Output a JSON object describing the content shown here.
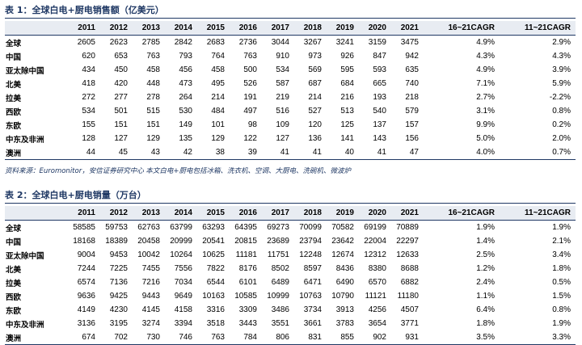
{
  "table1": {
    "caption": "表 1：全球白电+厨电销售额（亿美元）",
    "headers": [
      "",
      "2011",
      "2012",
      "2013",
      "2014",
      "2015",
      "2016",
      "2017",
      "2018",
      "2019",
      "2020",
      "2021",
      "16~21CAGR",
      "11~21CAGR"
    ],
    "rows": [
      [
        "全球",
        "2605",
        "2623",
        "2785",
        "2842",
        "2683",
        "2736",
        "3044",
        "3267",
        "3241",
        "3159",
        "3475",
        "4.9%",
        "2.9%"
      ],
      [
        "中国",
        "620",
        "653",
        "763",
        "793",
        "764",
        "763",
        "910",
        "973",
        "926",
        "847",
        "942",
        "4.3%",
        "4.3%"
      ],
      [
        "亚太除中国",
        "434",
        "450",
        "458",
        "456",
        "458",
        "500",
        "534",
        "569",
        "595",
        "593",
        "635",
        "4.9%",
        "3.9%"
      ],
      [
        "北美",
        "418",
        "420",
        "448",
        "473",
        "495",
        "526",
        "587",
        "687",
        "684",
        "665",
        "740",
        "7.1%",
        "5.9%"
      ],
      [
        "拉美",
        "272",
        "277",
        "278",
        "264",
        "214",
        "191",
        "219",
        "214",
        "216",
        "193",
        "218",
        "2.7%",
        "-2.2%"
      ],
      [
        "西欧",
        "534",
        "501",
        "515",
        "530",
        "484",
        "497",
        "516",
        "527",
        "513",
        "540",
        "579",
        "3.1%",
        "0.8%"
      ],
      [
        "东欧",
        "155",
        "151",
        "151",
        "149",
        "101",
        "98",
        "109",
        "120",
        "125",
        "137",
        "157",
        "9.9%",
        "0.2%"
      ],
      [
        "中东及非洲",
        "128",
        "127",
        "129",
        "135",
        "129",
        "122",
        "127",
        "136",
        "141",
        "143",
        "156",
        "5.0%",
        "2.0%"
      ],
      [
        "澳洲",
        "44",
        "45",
        "43",
        "42",
        "38",
        "39",
        "41",
        "41",
        "40",
        "41",
        "47",
        "4.0%",
        "0.7%"
      ]
    ]
  },
  "source": "资料来源：Euromonitor，安信证券研究中心  本文白电+厨电包括冰箱、洗衣机、空调、大厨电、洗碗机、微波炉",
  "table2": {
    "caption": "表 2：全球白电+厨电销量（万台）",
    "headers": [
      "",
      "2011",
      "2012",
      "2013",
      "2014",
      "2015",
      "2016",
      "2017",
      "2018",
      "2019",
      "2020",
      "2021",
      "16~21CAGR",
      "11~21CAGR"
    ],
    "rows": [
      [
        "全球",
        "58585",
        "59753",
        "62763",
        "63799",
        "63293",
        "64395",
        "69273",
        "70099",
        "70582",
        "69199",
        "70889",
        "1.9%",
        "1.9%"
      ],
      [
        "中国",
        "18168",
        "18389",
        "20458",
        "20999",
        "20541",
        "20815",
        "23689",
        "23794",
        "23642",
        "22004",
        "22297",
        "1.4%",
        "2.1%"
      ],
      [
        "亚太除中国",
        "9004",
        "9453",
        "10042",
        "10264",
        "10625",
        "11181",
        "11751",
        "12248",
        "12674",
        "12312",
        "12633",
        "2.5%",
        "3.4%"
      ],
      [
        "北美",
        "7244",
        "7225",
        "7455",
        "7556",
        "7822",
        "8176",
        "8502",
        "8597",
        "8436",
        "8380",
        "8688",
        "1.2%",
        "1.8%"
      ],
      [
        "拉美",
        "6574",
        "7136",
        "7216",
        "7034",
        "6544",
        "6101",
        "6489",
        "6471",
        "6490",
        "6570",
        "6882",
        "2.4%",
        "0.5%"
      ],
      [
        "西欧",
        "9636",
        "9425",
        "9443",
        "9649",
        "10163",
        "10585",
        "10999",
        "10763",
        "10790",
        "11121",
        "11180",
        "1.1%",
        "1.5%"
      ],
      [
        "东欧",
        "4149",
        "4230",
        "4145",
        "4158",
        "3316",
        "3309",
        "3486",
        "3734",
        "3913",
        "4256",
        "4507",
        "6.4%",
        "0.8%"
      ],
      [
        "中东及非洲",
        "3136",
        "3195",
        "3274",
        "3394",
        "3518",
        "3443",
        "3551",
        "3661",
        "3783",
        "3654",
        "3771",
        "1.8%",
        "1.9%"
      ],
      [
        "澳洲",
        "674",
        "702",
        "730",
        "746",
        "763",
        "784",
        "806",
        "831",
        "855",
        "902",
        "931",
        "3.5%",
        "3.3%"
      ]
    ]
  }
}
